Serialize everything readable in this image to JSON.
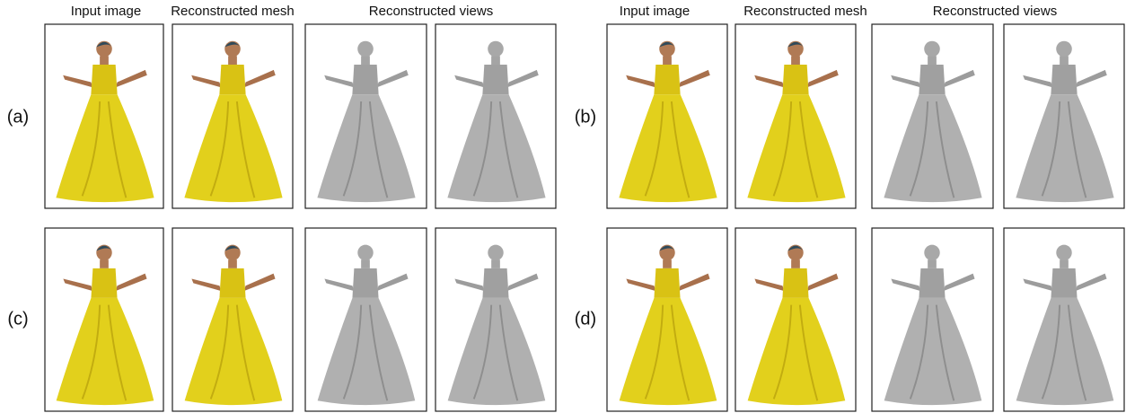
{
  "column_headers": [
    "Input image",
    "Reconstructed mesh",
    "Reconstructed views",
    "Input image",
    "Reconstructed mesh",
    "Reconstructed views"
  ],
  "row_labels": [
    "(a)",
    "(b)",
    "(c)",
    "(d)"
  ]
}
